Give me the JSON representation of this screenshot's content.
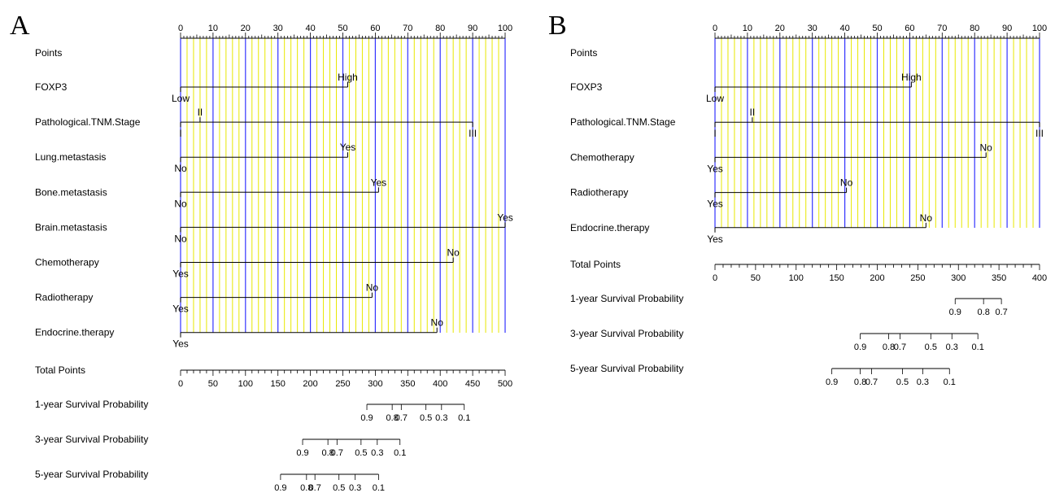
{
  "figure": {
    "panels": [
      "A",
      "B"
    ]
  },
  "colors": {
    "major_grid": "#3333ff",
    "minor_grid": "#e8e800",
    "ink": "#000000"
  },
  "chart_data": [
    {
      "type": "nomogram",
      "panel": "A",
      "points_axis": {
        "label": "Points",
        "range": [
          0,
          100
        ],
        "ticks": [
          0,
          10,
          20,
          30,
          40,
          50,
          60,
          70,
          80,
          90,
          100
        ],
        "tick_labels": [
          "0",
          "10",
          "20",
          "30",
          "40",
          "50",
          "60",
          "70",
          "80",
          "90",
          "100"
        ]
      },
      "grid": {
        "major": true,
        "minor": true,
        "minor_step": 2
      },
      "variables": [
        {
          "name": "FOXP3",
          "levels": [
            {
              "label": "Low",
              "points": 0,
              "pos": "below"
            },
            {
              "label": "High",
              "points": 51.5,
              "pos": "above"
            }
          ]
        },
        {
          "name": "Pathological.TNM.Stage",
          "levels": [
            {
              "label": "I",
              "points": 0,
              "pos": "below"
            },
            {
              "label": "II",
              "points": 6,
              "pos": "above"
            },
            {
              "label": "III",
              "points": 90,
              "pos": "below"
            }
          ]
        },
        {
          "name": "Lung.metastasis",
          "levels": [
            {
              "label": "No",
              "points": 0,
              "pos": "below"
            },
            {
              "label": "Yes",
              "points": 51.5,
              "pos": "above"
            }
          ]
        },
        {
          "name": "Bone.metastasis",
          "levels": [
            {
              "label": "No",
              "points": 0,
              "pos": "below"
            },
            {
              "label": "Yes",
              "points": 61,
              "pos": "above"
            }
          ]
        },
        {
          "name": "Brain.metastasis",
          "levels": [
            {
              "label": "No",
              "points": 0,
              "pos": "below"
            },
            {
              "label": "Yes",
              "points": 100,
              "pos": "above"
            }
          ]
        },
        {
          "name": "Chemotherapy",
          "levels": [
            {
              "label": "Yes",
              "points": 0,
              "pos": "below"
            },
            {
              "label": "No",
              "points": 84,
              "pos": "above"
            }
          ]
        },
        {
          "name": "Radiotherapy",
          "levels": [
            {
              "label": "Yes",
              "points": 0,
              "pos": "below"
            },
            {
              "label": "No",
              "points": 59,
              "pos": "above"
            }
          ]
        },
        {
          "name": "Endocrine.therapy",
          "levels": [
            {
              "label": "Yes",
              "points": 0,
              "pos": "below"
            },
            {
              "label": "No",
              "points": 79,
              "pos": "above"
            }
          ]
        }
      ],
      "total_points": {
        "label": "Total Points",
        "range": [
          0,
          500
        ],
        "major_ticks": [
          0,
          50,
          100,
          150,
          200,
          250,
          300,
          350,
          400,
          450,
          500
        ],
        "tick_labels": [
          "0",
          "50",
          "100",
          "150",
          "200",
          "250",
          "300",
          "350",
          "400",
          "450",
          "500"
        ],
        "minor_step": 10
      },
      "survival_scales": [
        {
          "label": "1-year Survival Probability",
          "range": [
            287,
            437
          ],
          "ticks": [
            {
              "label": "0.9",
              "total": 287
            },
            {
              "label": "0.8",
              "total": 326
            },
            {
              "label": "0.7",
              "total": 340
            },
            {
              "label": "0.5",
              "total": 378
            },
            {
              "label": "0.3",
              "total": 402
            },
            {
              "label": "0.1",
              "total": 437
            }
          ]
        },
        {
          "label": "3-year Survival Probability",
          "range": [
            188,
            338
          ],
          "ticks": [
            {
              "label": "0.9",
              "total": 188
            },
            {
              "label": "0.8",
              "total": 227
            },
            {
              "label": "0.7",
              "total": 241
            },
            {
              "label": "0.5",
              "total": 278
            },
            {
              "label": "0.3",
              "total": 303
            },
            {
              "label": "0.1",
              "total": 338
            }
          ]
        },
        {
          "label": "5-year Survival Probability",
          "range": [
            154,
            305
          ],
          "ticks": [
            {
              "label": "0.9",
              "total": 154
            },
            {
              "label": "0.8",
              "total": 194
            },
            {
              "label": "0.7",
              "total": 207
            },
            {
              "label": "0.5",
              "total": 244
            },
            {
              "label": "0.3",
              "total": 269
            },
            {
              "label": "0.1",
              "total": 305
            }
          ]
        }
      ]
    },
    {
      "type": "nomogram",
      "panel": "B",
      "points_axis": {
        "label": "Points",
        "range": [
          0,
          100
        ],
        "ticks": [
          0,
          10,
          20,
          30,
          40,
          50,
          60,
          70,
          80,
          90,
          100
        ],
        "tick_labels": [
          "0",
          "10",
          "20",
          "30",
          "40",
          "50",
          "60",
          "70",
          "80",
          "90",
          "100"
        ]
      },
      "grid": {
        "major": true,
        "minor": true,
        "minor_step": 2
      },
      "variables": [
        {
          "name": "FOXP3",
          "levels": [
            {
              "label": "Low",
              "points": 0,
              "pos": "below"
            },
            {
              "label": "High",
              "points": 60.5,
              "pos": "above"
            }
          ]
        },
        {
          "name": "Pathological.TNM.Stage",
          "levels": [
            {
              "label": "I",
              "points": 0,
              "pos": "below"
            },
            {
              "label": "II",
              "points": 11.5,
              "pos": "above"
            },
            {
              "label": "III",
              "points": 100,
              "pos": "below"
            }
          ]
        },
        {
          "name": "Chemotherapy",
          "levels": [
            {
              "label": "Yes",
              "points": 0,
              "pos": "below"
            },
            {
              "label": "No",
              "points": 83.5,
              "pos": "above"
            }
          ]
        },
        {
          "name": "Radiotherapy",
          "levels": [
            {
              "label": "Yes",
              "points": 0,
              "pos": "below"
            },
            {
              "label": "No",
              "points": 40.5,
              "pos": "above"
            }
          ]
        },
        {
          "name": "Endocrine.therapy",
          "levels": [
            {
              "label": "Yes",
              "points": 0,
              "pos": "below"
            },
            {
              "label": "No",
              "points": 65,
              "pos": "above"
            }
          ]
        }
      ],
      "total_points": {
        "label": "Total Points",
        "range": [
          0,
          400
        ],
        "major_ticks": [
          0,
          50,
          100,
          150,
          200,
          250,
          300,
          350,
          400
        ],
        "tick_labels": [
          "0",
          "50",
          "100",
          "150",
          "200",
          "250",
          "300",
          "350",
          "400"
        ],
        "minor_step": 10
      },
      "survival_scales": [
        {
          "label": "1-year Survival Probability",
          "range": [
            296,
            353
          ],
          "ticks": [
            {
              "label": "0.9",
              "total": 296
            },
            {
              "label": "0.8",
              "total": 331
            },
            {
              "label": "0.7",
              "total": 353
            }
          ]
        },
        {
          "label": "3-year Survival Probability",
          "range": [
            179,
            324
          ],
          "ticks": [
            {
              "label": "0.9",
              "total": 179
            },
            {
              "label": "0.8",
              "total": 214
            },
            {
              "label": "0.7",
              "total": 228
            },
            {
              "label": "0.5",
              "total": 266
            },
            {
              "label": "0.3",
              "total": 292
            },
            {
              "label": "0.1",
              "total": 324
            }
          ]
        },
        {
          "label": "5-year Survival Probability",
          "range": [
            144,
            289
          ],
          "ticks": [
            {
              "label": "0.9",
              "total": 144
            },
            {
              "label": "0.8",
              "total": 179
            },
            {
              "label": "0.7",
              "total": 193
            },
            {
              "label": "0.5",
              "total": 231
            },
            {
              "label": "0.3",
              "total": 256
            },
            {
              "label": "0.1",
              "total": 289
            }
          ]
        }
      ]
    }
  ]
}
